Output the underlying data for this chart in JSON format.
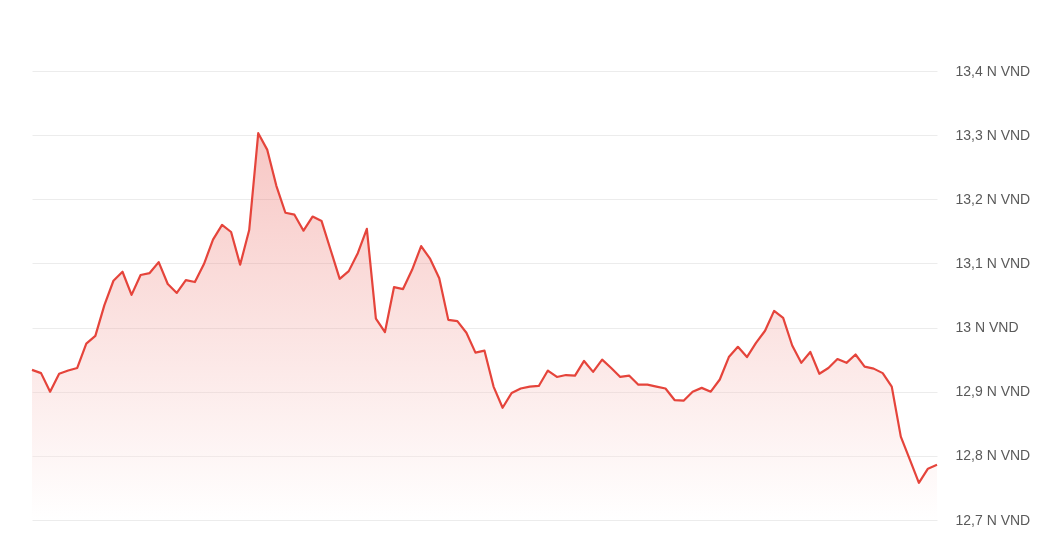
{
  "chart_data": {
    "type": "area",
    "categories": [
      null,
      null,
      null,
      null,
      null,
      null,
      null,
      null,
      null,
      null,
      null,
      null,
      null,
      null,
      null,
      null,
      null,
      null,
      null,
      null,
      null,
      null,
      null,
      null,
      null,
      null,
      null,
      null,
      null,
      null,
      null,
      null,
      null,
      null,
      null,
      null,
      null,
      null,
      null,
      null,
      null,
      null,
      null,
      null,
      null,
      null,
      null,
      null,
      null,
      null,
      null,
      null,
      null,
      null,
      null,
      null,
      null,
      null,
      null,
      null,
      null,
      null,
      null,
      null,
      null,
      null,
      null,
      null,
      null,
      null,
      null,
      null,
      null,
      null,
      null,
      null,
      null,
      null,
      null,
      null,
      null,
      null,
      null,
      null,
      null,
      null,
      null,
      null,
      null,
      null,
      null,
      null,
      null,
      null,
      null,
      null,
      null,
      null,
      null,
      null,
      null
    ],
    "values": [
      12.934,
      12.929,
      12.9,
      12.928,
      12.933,
      12.937,
      12.975,
      12.987,
      13.035,
      13.073,
      13.087,
      13.051,
      13.082,
      13.085,
      13.102,
      13.068,
      13.054,
      13.074,
      13.071,
      13.099,
      13.137,
      13.16,
      13.149,
      13.098,
      13.152,
      13.303,
      13.277,
      13.221,
      13.179,
      13.176,
      13.151,
      13.173,
      13.166,
      13.121,
      13.076,
      13.088,
      13.116,
      13.154,
      13.014,
      12.993,
      13.063,
      13.06,
      13.09,
      13.127,
      13.107,
      13.077,
      13.012,
      13.01,
      12.992,
      12.961,
      12.964,
      12.908,
      12.875,
      12.898,
      12.905,
      12.908,
      12.909,
      12.933,
      12.923,
      12.926,
      12.925,
      12.948,
      12.931,
      12.95,
      12.937,
      12.923,
      12.925,
      12.911,
      12.911,
      12.908,
      12.905,
      12.887,
      12.886,
      12.9,
      12.906,
      12.9,
      12.919,
      12.954,
      12.97,
      12.954,
      12.976,
      12.995,
      13.026,
      13.015,
      12.972,
      12.945,
      12.962,
      12.928,
      12.937,
      12.951,
      12.945,
      12.958,
      12.939,
      12.936,
      12.929,
      12.908,
      12.83,
      12.794,
      12.758,
      12.78,
      12.786
    ],
    "color": "#e5443b",
    "ylim": [
      12.7,
      13.4
    ],
    "yticks": [
      {
        "value": 12.7,
        "label": "12,7 N VND"
      },
      {
        "value": 12.8,
        "label": "12,8 N VND"
      },
      {
        "value": 12.9,
        "label": "12,9 N VND"
      },
      {
        "value": 13.0,
        "label": "13 N VND"
      },
      {
        "value": 13.1,
        "label": "13,1 N VND"
      },
      {
        "value": 13.2,
        "label": "13,2 N VND"
      },
      {
        "value": 13.3,
        "label": "13,3 N VND"
      },
      {
        "value": 13.4,
        "label": "13,4 N VND"
      }
    ],
    "grid": "y"
  }
}
